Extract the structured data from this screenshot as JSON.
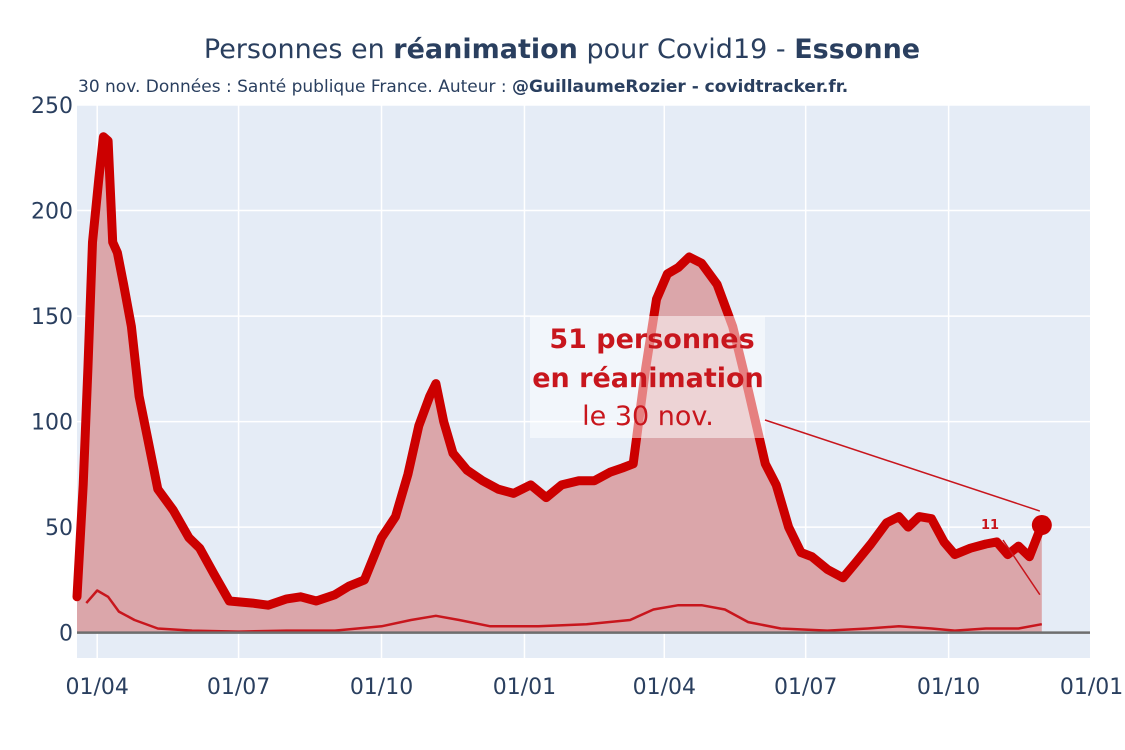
{
  "title": {
    "p1": "Personnes en ",
    "p2": "réanimation",
    "p3": " pour Covid19 - ",
    "p4": "Essonne"
  },
  "subtitle": {
    "p1": "30 nov. Données : Santé publique France. Auteur : ",
    "p2": "@GuillaumeRozier - covidtracker.fr."
  },
  "annotation": {
    "line1": "51 personnes",
    "line2": "en réanimation",
    "line3": "le 30 nov.",
    "secondary": "11"
  },
  "colors": {
    "plot_bg": "#e5ecf6",
    "grid": "#ffffff",
    "main_line": "#cc0000",
    "fill": "#dba6aa",
    "thin_line": "#c8161d",
    "axis_zero": "#6e6e6e"
  },
  "chart_data": {
    "type": "area",
    "xaxis": {
      "type": "date",
      "range": [
        "2020-03-19",
        "2021-12-31"
      ],
      "ticks": [
        {
          "date": "2020-04-01",
          "label": "01/04"
        },
        {
          "date": "2020-07-01",
          "label": "01/07"
        },
        {
          "date": "2020-10-01",
          "label": "01/10"
        },
        {
          "date": "2021-01-01",
          "label": "01/01"
        },
        {
          "date": "2021-04-01",
          "label": "01/04"
        },
        {
          "date": "2021-07-01",
          "label": "01/07"
        },
        {
          "date": "2021-10-01",
          "label": "01/10"
        },
        {
          "date": "2022-01-01",
          "label": "01/01"
        }
      ]
    },
    "yaxis": {
      "range": [
        -12,
        250
      ],
      "ticks": [
        0,
        50,
        100,
        150,
        200,
        250
      ],
      "grid": true
    },
    "series": [
      {
        "role": "reanimations",
        "style": "thick-line-with-fill",
        "points": [
          [
            "2020-03-19",
            17
          ],
          [
            "2020-03-23",
            70
          ],
          [
            "2020-03-26",
            125
          ],
          [
            "2020-03-29",
            185
          ],
          [
            "2020-04-02",
            215
          ],
          [
            "2020-04-05",
            235
          ],
          [
            "2020-04-08",
            233
          ],
          [
            "2020-04-11",
            185
          ],
          [
            "2020-04-14",
            180
          ],
          [
            "2020-04-18",
            165
          ],
          [
            "2020-04-23",
            145
          ],
          [
            "2020-04-28",
            112
          ],
          [
            "2020-05-04",
            90
          ],
          [
            "2020-05-10",
            68
          ],
          [
            "2020-05-20",
            58
          ],
          [
            "2020-05-30",
            45
          ],
          [
            "2020-06-06",
            40
          ],
          [
            "2020-06-15",
            28
          ],
          [
            "2020-06-25",
            15
          ],
          [
            "2020-07-10",
            14
          ],
          [
            "2020-07-20",
            13
          ],
          [
            "2020-08-01",
            16
          ],
          [
            "2020-08-10",
            17
          ],
          [
            "2020-08-20",
            15
          ],
          [
            "2020-09-01",
            18
          ],
          [
            "2020-09-10",
            22
          ],
          [
            "2020-09-20",
            25
          ],
          [
            "2020-10-01",
            45
          ],
          [
            "2020-10-10",
            55
          ],
          [
            "2020-10-18",
            75
          ],
          [
            "2020-10-25",
            98
          ],
          [
            "2020-11-01",
            112
          ],
          [
            "2020-11-05",
            118
          ],
          [
            "2020-11-10",
            100
          ],
          [
            "2020-11-16",
            85
          ],
          [
            "2020-11-25",
            77
          ],
          [
            "2020-12-05",
            72
          ],
          [
            "2020-12-15",
            68
          ],
          [
            "2020-12-25",
            66
          ],
          [
            "2021-01-05",
            70
          ],
          [
            "2021-01-15",
            64
          ],
          [
            "2021-01-25",
            70
          ],
          [
            "2021-02-05",
            72
          ],
          [
            "2021-02-15",
            72
          ],
          [
            "2021-02-25",
            76
          ],
          [
            "2021-03-05",
            78
          ],
          [
            "2021-03-12",
            80
          ],
          [
            "2021-03-20",
            125
          ],
          [
            "2021-03-27",
            158
          ],
          [
            "2021-04-03",
            170
          ],
          [
            "2021-04-10",
            173
          ],
          [
            "2021-04-17",
            178
          ],
          [
            "2021-04-25",
            175
          ],
          [
            "2021-05-05",
            165
          ],
          [
            "2021-05-15",
            145
          ],
          [
            "2021-05-25",
            115
          ],
          [
            "2021-06-05",
            80
          ],
          [
            "2021-06-12",
            70
          ],
          [
            "2021-06-20",
            50
          ],
          [
            "2021-06-28",
            38
          ],
          [
            "2021-07-05",
            36
          ],
          [
            "2021-07-15",
            30
          ],
          [
            "2021-07-25",
            26
          ],
          [
            "2021-08-02",
            33
          ],
          [
            "2021-08-12",
            42
          ],
          [
            "2021-08-22",
            52
          ],
          [
            "2021-08-30",
            55
          ],
          [
            "2021-09-05",
            50
          ],
          [
            "2021-09-12",
            55
          ],
          [
            "2021-09-20",
            54
          ],
          [
            "2021-09-28",
            43
          ],
          [
            "2021-10-05",
            37
          ],
          [
            "2021-10-15",
            40
          ],
          [
            "2021-10-25",
            42
          ],
          [
            "2021-11-01",
            43
          ],
          [
            "2021-11-08",
            37
          ],
          [
            "2021-11-15",
            41
          ],
          [
            "2021-11-22",
            36
          ],
          [
            "2021-11-30",
            51
          ]
        ]
      },
      {
        "role": "nouvelles-admissions",
        "style": "thin-line",
        "points": [
          [
            "2020-03-25",
            14
          ],
          [
            "2020-04-01",
            20
          ],
          [
            "2020-04-08",
            17
          ],
          [
            "2020-04-15",
            10
          ],
          [
            "2020-04-25",
            6
          ],
          [
            "2020-05-10",
            2
          ],
          [
            "2020-06-01",
            1
          ],
          [
            "2020-07-01",
            0.5
          ],
          [
            "2020-08-01",
            1
          ],
          [
            "2020-09-01",
            1
          ],
          [
            "2020-10-01",
            3
          ],
          [
            "2020-10-20",
            6
          ],
          [
            "2020-11-05",
            8
          ],
          [
            "2020-11-20",
            6
          ],
          [
            "2020-12-10",
            3
          ],
          [
            "2021-01-10",
            3
          ],
          [
            "2021-02-10",
            4
          ],
          [
            "2021-03-10",
            6
          ],
          [
            "2021-03-25",
            11
          ],
          [
            "2021-04-10",
            13
          ],
          [
            "2021-04-25",
            13
          ],
          [
            "2021-05-10",
            11
          ],
          [
            "2021-05-25",
            5
          ],
          [
            "2021-06-15",
            2
          ],
          [
            "2021-07-15",
            1
          ],
          [
            "2021-08-10",
            2
          ],
          [
            "2021-08-30",
            3
          ],
          [
            "2021-09-20",
            2
          ],
          [
            "2021-10-05",
            1
          ],
          [
            "2021-10-25",
            2
          ],
          [
            "2021-11-15",
            2
          ],
          [
            "2021-11-30",
            4
          ]
        ]
      }
    ],
    "highlight": {
      "date": "2021-11-30",
      "value": 51
    }
  }
}
